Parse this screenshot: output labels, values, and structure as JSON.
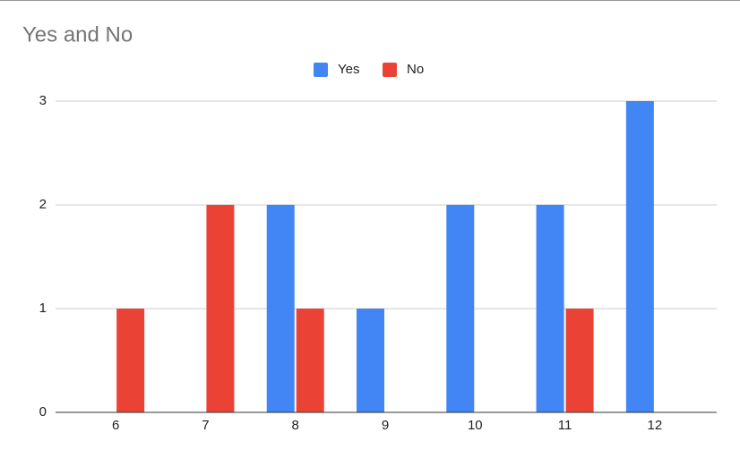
{
  "chart_data": {
    "type": "bar",
    "title": "Yes and No",
    "categories": [
      "6",
      "7",
      "8",
      "9",
      "10",
      "11",
      "12"
    ],
    "series": [
      {
        "name": "Yes",
        "color": "#4285f4",
        "values": [
          0,
          0,
          2,
          1,
          2,
          2,
          3
        ]
      },
      {
        "name": "No",
        "color": "#ea4335",
        "values": [
          1,
          2,
          1,
          0,
          0,
          1,
          0
        ]
      }
    ],
    "ylim": [
      0,
      3
    ],
    "yticks": [
      0,
      1,
      2,
      3
    ],
    "grid": true,
    "legend": "top"
  }
}
